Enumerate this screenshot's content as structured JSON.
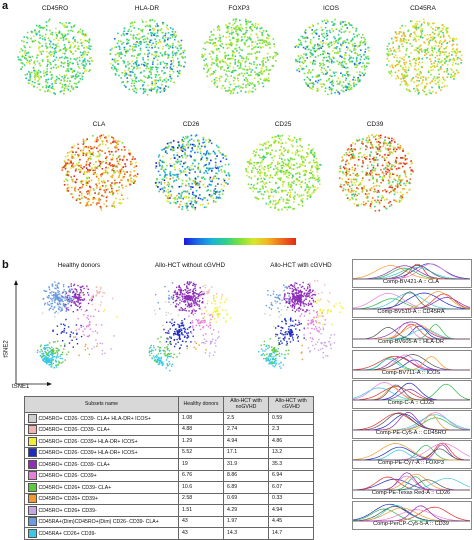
{
  "panel_a": {
    "letter": "a",
    "markers_row1": [
      "CD45RO",
      "HLA-DR",
      "FOXP3",
      "ICOS",
      "CD45RA"
    ],
    "markers_row2": [
      "CLA",
      "CD26",
      "CD25",
      "CD39"
    ],
    "colormap": [
      "#1a1adf",
      "#18b4d8",
      "#2fd08a",
      "#d6e82b",
      "#e22a1a"
    ]
  },
  "panel_b": {
    "letter": "b",
    "tsne_titles": [
      "Healthy donors",
      "Allo-HCT without cGVHD",
      "Allo-HCT with cGVHD"
    ],
    "axis_y": "tSNE2",
    "axis_x": "tSNE1",
    "table": {
      "headers": [
        "Subsets name",
        "Healthy donors",
        "Allo-HCT with noGVHD",
        "Allo-HCT with cGVHD"
      ],
      "rows": [
        {
          "color": "#cfcfcf",
          "name": "CD45RO+ CD26- CD39- CLA+ HLA-DR+ ICOS+",
          "healthy": "1.08",
          "nogvhd": "2.5",
          "cgvhd": "0.59"
        },
        {
          "color": "#f4b3b3",
          "name": "CD45RO+ CD26- CD39- CLA+",
          "healthy": "4.88",
          "nogvhd": "2.74",
          "cgvhd": "2.3"
        },
        {
          "color": "#f3ee3a",
          "name": "CD45RO+ CD26- CD39+ HLA-DR+ ICOS+",
          "healthy": "1.29",
          "nogvhd": "4.94",
          "cgvhd": "4.86"
        },
        {
          "color": "#1d2bc4",
          "name": "CD45RO+ CD26- CD39+ HLA-DR+ ICOS+",
          "healthy": "5.52",
          "nogvhd": "17.1",
          "cgvhd": "13.2"
        },
        {
          "color": "#8e2fb8",
          "name": "CD45RO+ CD26- CD39- CLA+",
          "healthy": "19",
          "nogvhd": "31.9",
          "cgvhd": "35.3"
        },
        {
          "color": "#e77fd9",
          "name": "CD45RO+ CD26- CD39+",
          "healthy": "6.76",
          "nogvhd": "8.86",
          "cgvhd": "6.94"
        },
        {
          "color": "#5cc93f",
          "name": "CD45RO+ CD26+ CD39- CLA+",
          "healthy": "10.6",
          "nogvhd": "6.89",
          "cgvhd": "6.07"
        },
        {
          "color": "#f29a2e",
          "name": "CD45RO+ CD26+ CD39+",
          "healthy": "2.58",
          "nogvhd": "0.69",
          "cgvhd": "0.33"
        },
        {
          "color": "#c7a6e8",
          "name": "CD45RO+ CD26+ CD39-",
          "healthy": "1.51",
          "nogvhd": "4.29",
          "cgvhd": "4.94"
        },
        {
          "color": "#6c9be0",
          "name": "CD45RA+(Dim)CD45RO+(Dim) CD26- CD39- CLA+",
          "healthy": "43",
          "nogvhd": "1.97",
          "cgvhd": "4.45"
        },
        {
          "color": "#39c9e3",
          "name": "CD45RA+ CD26+ CD39-",
          "healthy": "43",
          "nogvhd": "14.3",
          "cgvhd": "14.7"
        }
      ]
    },
    "histograms": [
      "Comp-BV421-A :: CLA",
      "Comp-BV510-A :: CD45RA",
      "Comp-BV605-A :: HLA-DR",
      "Comp-BV711-A :: ICOS",
      "Comp-C-A :: CD25",
      "Comp-PE-Cy5-A :: CD45RO",
      "Comp-PE-Cy7-A :: FOXP3",
      "Comp-PE-Texas Red-A :: CD26",
      "Comp-PerCP-Cy5-5-A :: CD39"
    ]
  }
}
